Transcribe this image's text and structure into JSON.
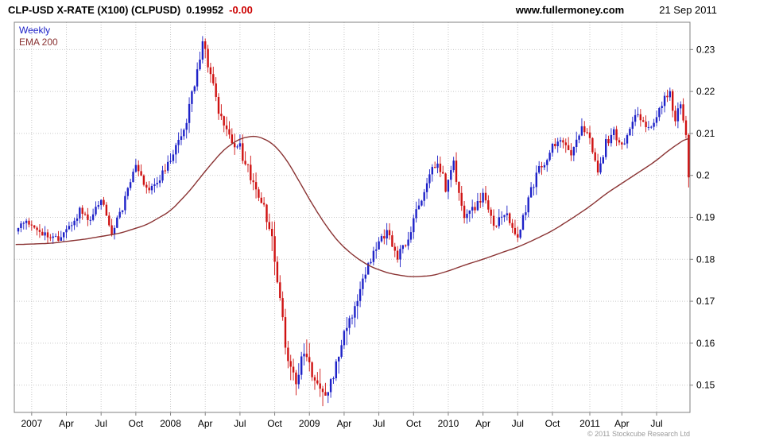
{
  "header": {
    "title": "CLP-USD X-RATE (X100) (CLPUSD)",
    "last_price": "0.19952",
    "change": "-0.00",
    "website": "www.fullermoney.com",
    "date": "21 Sep 2011"
  },
  "legend": {
    "series": "Weekly",
    "overlay": "EMA 200"
  },
  "footer": {
    "copyright": "© 2011 Stockcube Research Ltd"
  },
  "colors": {
    "up": "#1e22c8",
    "down": "#cf1212",
    "ema": "#8a3333",
    "grid": "#c9c9c9",
    "frame": "#808080",
    "change": "#cc0000",
    "text": "#000000"
  },
  "chart_data": {
    "type": "candlestick",
    "title": "CLP-USD X-RATE (X100) (CLPUSD)",
    "timeframe": "weekly",
    "x_range": [
      "Nov 2006",
      "21 Sep 2011"
    ],
    "weeks_total": 252,
    "last_close": 0.19952,
    "ylim": [
      0.1435,
      0.2365
    ],
    "grid": true,
    "legend_position": "top-left",
    "y_ticks": [
      {
        "label": "0.23",
        "value": 0.23
      },
      {
        "label": "0.22",
        "value": 0.22
      },
      {
        "label": "0.21",
        "value": 0.21
      },
      {
        "label": "0.2",
        "value": 0.2
      },
      {
        "label": "0.19",
        "value": 0.19
      },
      {
        "label": "0.18",
        "value": 0.18
      },
      {
        "label": "0.17",
        "value": 0.17
      },
      {
        "label": "0.16",
        "value": 0.16
      },
      {
        "label": "0.15",
        "value": 0.15
      }
    ],
    "x_ticks": [
      {
        "label": "2007",
        "week": 6
      },
      {
        "label": "Apr",
        "week": 19
      },
      {
        "label": "Jul",
        "week": 32
      },
      {
        "label": "Oct",
        "week": 45
      },
      {
        "label": "2008",
        "week": 58
      },
      {
        "label": "Apr",
        "week": 71
      },
      {
        "label": "Jul",
        "week": 84
      },
      {
        "label": "Oct",
        "week": 97
      },
      {
        "label": "2009",
        "week": 110
      },
      {
        "label": "Apr",
        "week": 123
      },
      {
        "label": "Jul",
        "week": 136
      },
      {
        "label": "Oct",
        "week": 149
      },
      {
        "label": "2010",
        "week": 162
      },
      {
        "label": "Apr",
        "week": 175
      },
      {
        "label": "Jul",
        "week": 188
      },
      {
        "label": "Oct",
        "week": 201
      },
      {
        "label": "2011",
        "week": 215
      },
      {
        "label": "Apr",
        "week": 227
      },
      {
        "label": "Jul",
        "week": 240
      }
    ],
    "price_anchors": [
      [
        0,
        0.1875
      ],
      [
        4,
        0.1885
      ],
      [
        8,
        0.1875
      ],
      [
        12,
        0.1855
      ],
      [
        16,
        0.1845
      ],
      [
        20,
        0.1875
      ],
      [
        24,
        0.1915
      ],
      [
        28,
        0.1895
      ],
      [
        32,
        0.1945
      ],
      [
        36,
        0.1868
      ],
      [
        40,
        0.1925
      ],
      [
        45,
        0.2025
      ],
      [
        49,
        0.1965
      ],
      [
        53,
        0.1985
      ],
      [
        58,
        0.2035
      ],
      [
        63,
        0.2105
      ],
      [
        67,
        0.2215
      ],
      [
        70,
        0.2325
      ],
      [
        73,
        0.224
      ],
      [
        76,
        0.215
      ],
      [
        80,
        0.2085
      ],
      [
        84,
        0.2065
      ],
      [
        88,
        0.1995
      ],
      [
        92,
        0.194
      ],
      [
        96,
        0.1862
      ],
      [
        99,
        0.17
      ],
      [
        102,
        0.1555
      ],
      [
        105,
        0.1505
      ],
      [
        108,
        0.158
      ],
      [
        111,
        0.153
      ],
      [
        114,
        0.1488
      ],
      [
        117,
        0.1478
      ],
      [
        120,
        0.156
      ],
      [
        123,
        0.163
      ],
      [
        127,
        0.169
      ],
      [
        131,
        0.177
      ],
      [
        135,
        0.1825
      ],
      [
        139,
        0.1872
      ],
      [
        143,
        0.1808
      ],
      [
        147,
        0.1845
      ],
      [
        151,
        0.193
      ],
      [
        155,
        0.2005
      ],
      [
        158,
        0.2038
      ],
      [
        161,
        0.1972
      ],
      [
        164,
        0.2028
      ],
      [
        168,
        0.1892
      ],
      [
        172,
        0.1925
      ],
      [
        175,
        0.1955
      ],
      [
        179,
        0.1878
      ],
      [
        183,
        0.1912
      ],
      [
        188,
        0.1846
      ],
      [
        192,
        0.1945
      ],
      [
        196,
        0.2015
      ],
      [
        201,
        0.2065
      ],
      [
        205,
        0.2088
      ],
      [
        208,
        0.2045
      ],
      [
        212,
        0.2115
      ],
      [
        215,
        0.2085
      ],
      [
        218,
        0.2
      ],
      [
        221,
        0.2078
      ],
      [
        224,
        0.2105
      ],
      [
        227,
        0.2068
      ],
      [
        230,
        0.2115
      ],
      [
        233,
        0.2148
      ],
      [
        236,
        0.2108
      ],
      [
        239,
        0.2135
      ],
      [
        242,
        0.2175
      ],
      [
        245,
        0.2195
      ],
      [
        247,
        0.2132
      ],
      [
        249,
        0.2168
      ],
      [
        251,
        0.2098
      ],
      [
        252,
        0.19952
      ]
    ],
    "ema_anchors": [
      [
        0,
        0.1835
      ],
      [
        13,
        0.1838
      ],
      [
        26,
        0.1848
      ],
      [
        39,
        0.1862
      ],
      [
        49,
        0.1882
      ],
      [
        58,
        0.1915
      ],
      [
        65,
        0.1962
      ],
      [
        72,
        0.2018
      ],
      [
        78,
        0.2062
      ],
      [
        84,
        0.2088
      ],
      [
        90,
        0.2095
      ],
      [
        96,
        0.2078
      ],
      [
        101,
        0.2042
      ],
      [
        106,
        0.1988
      ],
      [
        111,
        0.1932
      ],
      [
        116,
        0.1882
      ],
      [
        121,
        0.184
      ],
      [
        127,
        0.1806
      ],
      [
        133,
        0.1782
      ],
      [
        140,
        0.1766
      ],
      [
        148,
        0.1758
      ],
      [
        156,
        0.1761
      ],
      [
        162,
        0.1772
      ],
      [
        168,
        0.1786
      ],
      [
        175,
        0.18
      ],
      [
        182,
        0.1816
      ],
      [
        188,
        0.1829
      ],
      [
        194,
        0.1846
      ],
      [
        201,
        0.1868
      ],
      [
        208,
        0.1896
      ],
      [
        215,
        0.1926
      ],
      [
        221,
        0.1956
      ],
      [
        227,
        0.1981
      ],
      [
        233,
        0.2006
      ],
      [
        239,
        0.2031
      ],
      [
        245,
        0.2062
      ],
      [
        252,
        0.2092
      ]
    ]
  }
}
